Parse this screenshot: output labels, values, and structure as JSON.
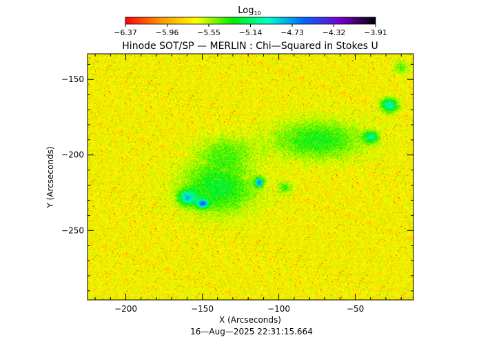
{
  "colorbar": {
    "title_main": "Log",
    "title_sub": "10",
    "ticks": [
      "-6.37",
      "-5.96",
      "-5.55",
      "-5.14",
      "-4.73",
      "-4.32",
      "-3.91"
    ],
    "range": [
      -6.37,
      -3.91
    ],
    "colormap": [
      "#ff0000",
      "#ff9900",
      "#ffff00",
      "#00ee00",
      "#00ffcc",
      "#0066ff",
      "#7700cc",
      "#000000"
    ]
  },
  "chart_data": {
    "type": "heatmap",
    "title": "Hinode SOT/SP — MERLIN : Chi—Squared in Stokes U",
    "xlabel": "X (Arcseconds)",
    "ylabel": "Y (Arcseconds)",
    "xlim": [
      -225,
      -12
    ],
    "ylim": [
      -296,
      -133
    ],
    "x_ticks": [
      -200,
      -150,
      -100,
      -50
    ],
    "x_tick_labels": [
      "−200",
      "−150",
      "−100",
      "−50"
    ],
    "y_ticks": [
      -150,
      -200,
      -250
    ],
    "y_tick_labels": [
      "−150",
      "−200",
      "−250"
    ],
    "value_range": [
      -6.37,
      -3.91
    ],
    "background_level": -5.7,
    "regions": [
      {
        "x": -140,
        "y": -222,
        "rx": 26,
        "ry": 18,
        "level": -5.25
      },
      {
        "x": -75,
        "y": -190,
        "rx": 32,
        "ry": 14,
        "level": -5.3
      },
      {
        "x": -135,
        "y": -198,
        "rx": 20,
        "ry": 12,
        "level": -5.45
      },
      {
        "x": -28,
        "y": -167,
        "rx": 6,
        "ry": 5,
        "level": -4.95
      },
      {
        "x": -160,
        "y": -228,
        "rx": 6,
        "ry": 5,
        "level": -5.0
      },
      {
        "x": -113,
        "y": -218,
        "rx": 3,
        "ry": 3,
        "level": -4.7
      },
      {
        "x": -150,
        "y": -232,
        "rx": 4,
        "ry": 3,
        "level": -4.8
      },
      {
        "x": -20,
        "y": -142,
        "rx": 6,
        "ry": 5,
        "level": -5.45
      },
      {
        "x": -96,
        "y": -222,
        "rx": 5,
        "ry": 5,
        "level": -5.4
      },
      {
        "x": -40,
        "y": -188,
        "rx": 5,
        "ry": 4,
        "level": -5.1
      }
    ]
  },
  "timestamp": "16—Aug—2025 22:31:15.664"
}
